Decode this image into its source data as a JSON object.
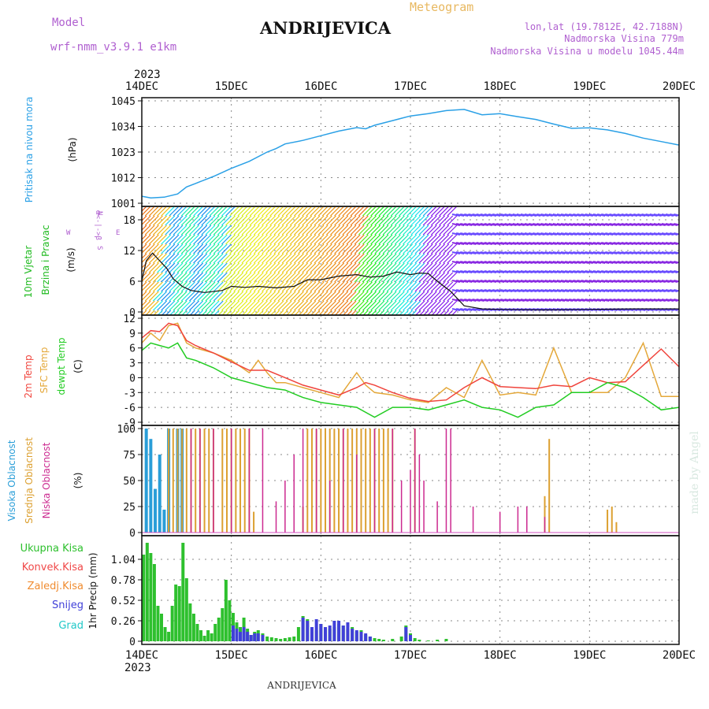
{
  "header": {
    "model_label": "Model",
    "model_name": "wrf-nmm_v3.9.1 e1km",
    "station": "ANDRIJEVICA",
    "meteogram": "Meteogram",
    "lonlat": "lon,lat (19.7812E, 42.7188N)",
    "altitude": "Nadmorska Visina 779m",
    "model_altitude": "Nadmorska Visina u modelu 1045.44m"
  },
  "footer": {
    "station": "ANDRIJEVICA",
    "credit": "made by Angel"
  },
  "colors": {
    "pressure": "#2aa0e6",
    "temp2m": "#f0443c",
    "sfc": "#e4a83a",
    "dewpt": "#22cc22",
    "high_cloud": "#2a9ed8",
    "mid_cloud": "#dca030",
    "low_cloud": "#cc2a90",
    "total_precip": "#2ec02e",
    "snow": "#4040d8",
    "grad": "#20c8c8",
    "konvek": "#f04848",
    "zaledj": "#f08c30",
    "model_text": "#b060d0",
    "meteogram_text": "#e8b860",
    "credit": "#d8e8e0"
  },
  "chart_data": [
    {
      "type": "line",
      "ylabel": "Pritisak na nivou mora",
      "unit": "(hPa)",
      "ylim": [
        1001,
        1045
      ],
      "yticks": [
        "1001",
        "1012",
        "1023",
        "1034",
        "1045"
      ],
      "series": [
        {
          "x": [
            0,
            0.1,
            0.25,
            0.4,
            0.5,
            0.6,
            0.8,
            1.0,
            1.2,
            1.4,
            1.5,
            1.6,
            1.8,
            2.0,
            2.2,
            2.4,
            2.5,
            2.6,
            2.8,
            3.0,
            3.2,
            3.4,
            3.6,
            3.8,
            4.0,
            4.2,
            4.4,
            4.6,
            4.8,
            5.0,
            5.2,
            5.4,
            5.6,
            5.8,
            6.0
          ],
          "y": [
            1004,
            1003.3,
            1003.6,
            1005,
            1008,
            1009.5,
            1012.5,
            1016,
            1019,
            1023,
            1024.5,
            1026.5,
            1028,
            1030,
            1032,
            1033.5,
            1033,
            1034.5,
            1036.5,
            1038.5,
            1039.5,
            1040.8,
            1041.3,
            1039,
            1039.5,
            1038.2,
            1037,
            1035,
            1033.2,
            1033.4,
            1032.5,
            1031,
            1029,
            1027.5,
            1026
          ]
        }
      ]
    },
    {
      "type": "line",
      "ylabel": "10m Vjetar Brzina i Pravac",
      "unit": "(m/s)",
      "ylim": [
        0,
        20
      ],
      "yticks": [
        "0",
        "6",
        "12",
        "18"
      ],
      "series": [
        {
          "x": [
            0,
            0.05,
            0.12,
            0.2,
            0.28,
            0.35,
            0.45,
            0.55,
            0.7,
            0.9,
            1.0,
            1.15,
            1.3,
            1.5,
            1.7,
            1.85,
            2.0,
            2.2,
            2.4,
            2.55,
            2.7,
            2.85,
            3.0,
            3.1,
            3.2,
            3.3,
            3.45,
            3.6,
            3.8,
            4.0,
            4.5,
            5.0,
            5.5,
            6.0
          ],
          "y": [
            6,
            10,
            11.5,
            10,
            8.5,
            6.5,
            5,
            4.2,
            3.8,
            4.2,
            5,
            4.8,
            5,
            4.7,
            5,
            6.3,
            6.3,
            7,
            7.3,
            6.8,
            7,
            7.8,
            7.3,
            7.6,
            7.5,
            6,
            4,
            1.2,
            0.6,
            0.5,
            0.4,
            0.5,
            0.6,
            0.6
          ]
        }
      ]
    },
    {
      "type": "line",
      "ylabel": "2m Temp / SFC Temp / dewpt Temp",
      "unit": "(C)",
      "ylim": [
        -9,
        12
      ],
      "yticks": [
        "-9",
        "-6",
        "-3",
        "0",
        "3",
        "6",
        "9",
        "12"
      ],
      "series": [
        {
          "name": "2m Temp",
          "x": [
            0,
            0.1,
            0.2,
            0.3,
            0.4,
            0.5,
            0.6,
            0.8,
            1.0,
            1.2,
            1.4,
            1.6,
            1.8,
            2.0,
            2.2,
            2.4,
            2.5,
            2.6,
            2.8,
            3.0,
            3.2,
            3.4,
            3.6,
            3.8,
            4.0,
            4.2,
            4.4,
            4.6,
            4.8,
            5.0,
            5.2,
            5.4,
            5.6,
            5.8,
            6.0
          ],
          "y": [
            8,
            9.5,
            9.3,
            11,
            10.5,
            7.5,
            6.5,
            5,
            3.2,
            1.5,
            1.5,
            0,
            -1.5,
            -2.5,
            -3.5,
            -2,
            -1,
            -1.5,
            -3,
            -4.2,
            -4.8,
            -4.5,
            -2,
            0,
            -1.8,
            -2,
            -2.2,
            -1.5,
            -1.8,
            0,
            -1,
            -0.8,
            2.5,
            5.8,
            2.2
          ]
        },
        {
          "name": "SFC Temp",
          "x": [
            0,
            0.1,
            0.2,
            0.3,
            0.4,
            0.5,
            0.6,
            0.8,
            1.0,
            1.2,
            1.3,
            1.4,
            1.5,
            1.6,
            1.8,
            2.0,
            2.2,
            2.4,
            2.5,
            2.6,
            2.8,
            3.0,
            3.2,
            3.4,
            3.6,
            3.8,
            4.0,
            4.2,
            4.4,
            4.6,
            4.8,
            5.0,
            5.2,
            5.4,
            5.6,
            5.8,
            6.0
          ],
          "y": [
            7,
            9,
            7.5,
            10.5,
            11,
            7,
            6,
            5,
            3.5,
            1,
            3.5,
            1,
            -1,
            -1,
            -2,
            -3,
            -4,
            1,
            -1.5,
            -3,
            -3.5,
            -4.5,
            -5,
            -2,
            -4,
            3.5,
            -3.5,
            -3,
            -3.5,
            6,
            -3,
            -3,
            -3,
            0,
            7,
            -3.8,
            -3.8
          ]
        },
        {
          "name": "dewpt Temp",
          "x": [
            0,
            0.1,
            0.2,
            0.3,
            0.4,
            0.5,
            0.6,
            0.8,
            1.0,
            1.2,
            1.4,
            1.6,
            1.8,
            2.0,
            2.2,
            2.4,
            2.6,
            2.8,
            3.0,
            3.2,
            3.4,
            3.6,
            3.8,
            4.0,
            4.2,
            4.4,
            4.6,
            4.8,
            5.0,
            5.2,
            5.4,
            5.6,
            5.8,
            6.0
          ],
          "y": [
            5.5,
            7,
            6.5,
            6,
            7,
            4,
            3.5,
            2,
            0,
            -1,
            -2,
            -2.5,
            -4,
            -5,
            -5.5,
            -6,
            -8,
            -6,
            -6,
            -6.5,
            -5.5,
            -4.5,
            -6,
            -6.5,
            -8,
            -6,
            -5.5,
            -3,
            -3,
            -1,
            -2,
            -4,
            -6.5,
            -6
          ]
        }
      ]
    },
    {
      "type": "bar",
      "ylabel": "Visoka Oblacnost / Srednja Oblacnost / Niska Oblacnost",
      "unit": "(%)",
      "ylim": [
        0,
        100
      ],
      "yticks": [
        "0",
        "25",
        "50",
        "75",
        "100"
      ],
      "series": [
        {
          "name": "Visoka Oblacnost",
          "x": [
            0.05,
            0.1,
            0.15,
            0.2,
            0.25,
            0.3,
            0.4,
            0.45
          ],
          "y": [
            100,
            90,
            42,
            75,
            22,
            100,
            100,
            100
          ]
        },
        {
          "name": "Srednja Oblacnost",
          "x": [
            0.3,
            0.35,
            0.4,
            0.45,
            0.5,
            0.55,
            0.6,
            0.65,
            0.7,
            0.75,
            0.8,
            0.9,
            0.95,
            1.0,
            1.05,
            1.1,
            1.15,
            1.2,
            1.25,
            1.8,
            1.85,
            1.9,
            1.95,
            2.0,
            2.05,
            2.1,
            2.15,
            2.2,
            2.25,
            2.3,
            2.35,
            2.4,
            2.45,
            2.5,
            2.55,
            2.6,
            2.65,
            2.7,
            2.75,
            2.8,
            3.05,
            4.5,
            4.55,
            5.2,
            5.25,
            5.3
          ],
          "y": [
            100,
            100,
            100,
            100,
            100,
            100,
            100,
            100,
            100,
            100,
            100,
            100,
            100,
            100,
            100,
            100,
            100,
            100,
            20,
            25,
            100,
            100,
            100,
            100,
            100,
            100,
            100,
            100,
            100,
            100,
            100,
            100,
            100,
            100,
            100,
            100,
            100,
            100,
            100,
            100,
            100,
            35,
            90,
            22,
            25,
            10
          ]
        },
        {
          "name": "Niska Oblacnost",
          "x": [
            0.55,
            0.65,
            0.8,
            1.0,
            1.2,
            1.35,
            1.5,
            1.6,
            1.7,
            1.8,
            1.95,
            2.1,
            2.25,
            2.4,
            2.6,
            2.8,
            2.9,
            3.0,
            3.05,
            3.1,
            3.15,
            3.3,
            3.4,
            3.45,
            3.7,
            4.0,
            4.2,
            4.3,
            4.5
          ],
          "y": [
            100,
            100,
            100,
            100,
            100,
            100,
            30,
            50,
            75,
            100,
            100,
            50,
            100,
            75,
            100,
            100,
            50,
            60,
            100,
            75,
            50,
            30,
            100,
            100,
            25,
            20,
            25,
            25,
            15
          ]
        }
      ]
    },
    {
      "type": "bar",
      "ylabel": "1hr Precip (mm)",
      "unit": "",
      "ylim": [
        0,
        1.3
      ],
      "yticks": [
        "0",
        "0.26",
        "0.52",
        "0.78",
        "1.04"
      ],
      "legend": [
        "Ukupna Kisa",
        "Konvek.Kisa",
        "Zaledj.Kisa",
        "Snijeg",
        "Grad"
      ],
      "series": [
        {
          "name": "Ukupna Kisa",
          "x": [
            0.02,
            0.06,
            0.1,
            0.14,
            0.18,
            0.22,
            0.26,
            0.3,
            0.34,
            0.38,
            0.42,
            0.46,
            0.5,
            0.54,
            0.58,
            0.62,
            0.66,
            0.7,
            0.74,
            0.78,
            0.82,
            0.86,
            0.9,
            0.94,
            0.98,
            1.02,
            1.06,
            1.1,
            1.14,
            1.18,
            1.22,
            1.26,
            1.3,
            1.35,
            1.4,
            1.45,
            1.5,
            1.55,
            1.6,
            1.65,
            1.7,
            1.75,
            1.8,
            1.85,
            1.9,
            1.95,
            2.0,
            2.05,
            2.1,
            2.15,
            2.2,
            2.25,
            2.3,
            2.35,
            2.4,
            2.45,
            2.5,
            2.55,
            2.6,
            2.65,
            2.7,
            2.8,
            2.9,
            2.95,
            3.0,
            3.05,
            3.1,
            3.2,
            3.3,
            3.4
          ],
          "y": [
            1.1,
            1.25,
            1.12,
            0.98,
            0.45,
            0.35,
            0.18,
            0.12,
            0.45,
            0.72,
            0.7,
            1.25,
            0.8,
            0.48,
            0.35,
            0.22,
            0.14,
            0.07,
            0.14,
            0.1,
            0.22,
            0.3,
            0.42,
            0.78,
            0.52,
            0.36,
            0.24,
            0.18,
            0.3,
            0.16,
            0.08,
            0.12,
            0.14,
            0.1,
            0.06,
            0.05,
            0.04,
            0.03,
            0.04,
            0.05,
            0.06,
            0.18,
            0.32,
            0.28,
            0.12,
            0.14,
            0.22,
            0.18,
            0.16,
            0.18,
            0.22,
            0.2,
            0.16,
            0.18,
            0.12,
            0.14,
            0.08,
            0.06,
            0.04,
            0.03,
            0.02,
            0.03,
            0.06,
            0.2,
            0.1,
            0.04,
            0.02,
            0.01,
            0.02,
            0.03
          ]
        },
        {
          "name": "Snijeg",
          "x": [
            1.02,
            1.06,
            1.1,
            1.14,
            1.18,
            1.22,
            1.26,
            1.3,
            1.35,
            1.8,
            1.85,
            1.9,
            1.95,
            2.0,
            2.05,
            2.1,
            2.15,
            2.2,
            2.25,
            2.3,
            2.35,
            2.4,
            2.45,
            2.5,
            2.55,
            2.95,
            3.0
          ],
          "y": [
            0.2,
            0.16,
            0.12,
            0.18,
            0.12,
            0.08,
            0.1,
            0.1,
            0.08,
            0.3,
            0.26,
            0.18,
            0.28,
            0.22,
            0.18,
            0.2,
            0.26,
            0.26,
            0.2,
            0.24,
            0.16,
            0.14,
            0.12,
            0.1,
            0.06,
            0.18,
            0.08
          ]
        }
      ]
    }
  ],
  "x_axis": {
    "tick_labels": [
      "14DEC",
      "15DEC",
      "16DEC",
      "17DEC",
      "18DEC",
      "19DEC",
      "20DEC"
    ],
    "year": "2023"
  },
  "wind_panel": {
    "compass": [
      "W",
      "E",
      "N",
      "S"
    ],
    "direction_hint": "α<-|->β"
  }
}
